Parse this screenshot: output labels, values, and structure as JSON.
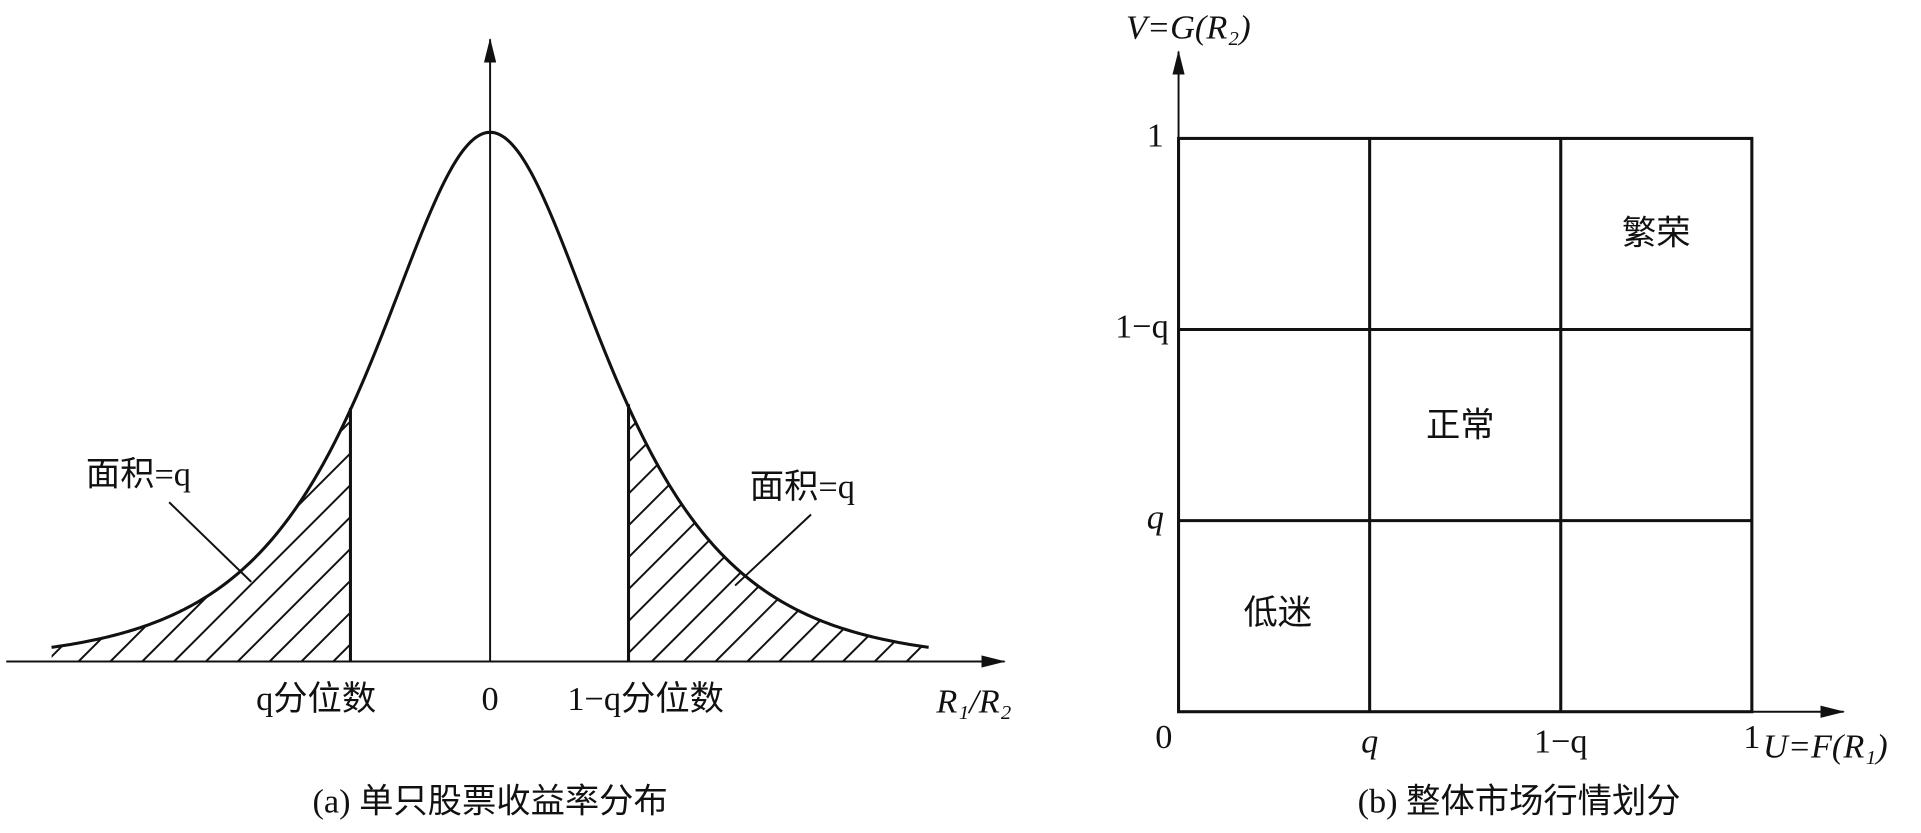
{
  "panel_a": {
    "caption": "(a) 单只股票收益率分布",
    "x_axis_label": "R₁/R₂",
    "origin_label": "0",
    "left_quantile_label": "q分位数",
    "right_quantile_label": "1−q分位数",
    "left_area_label": "面积=q",
    "right_area_label": "面积=q"
  },
  "panel_b": {
    "caption": "(b) 整体市场行情划分",
    "y_axis_label": "V=G(R₂)",
    "x_axis_label": "U=F(R₁)",
    "origin_label": "0",
    "y_ticks": [
      "q",
      "1−q",
      "1"
    ],
    "x_ticks": [
      "q",
      "1−q",
      "1"
    ],
    "regions": {
      "low": "低迷",
      "normal": "正常",
      "boom": "繁荣"
    }
  }
}
